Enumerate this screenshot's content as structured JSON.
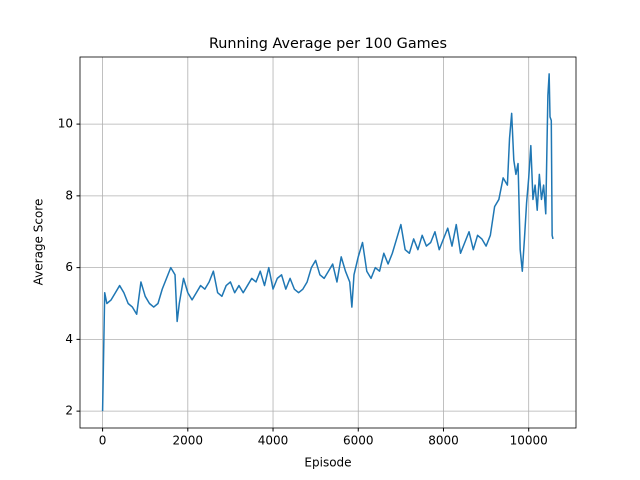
{
  "chart_data": {
    "type": "line",
    "title": "Running Average per 100 Games",
    "xlabel": "Episode",
    "ylabel": "Average Score",
    "color": "#1f77b4",
    "grid": true,
    "xlim": [
      -530,
      11110
    ],
    "ylim": [
      1.53,
      11.87
    ],
    "xticks": [
      0,
      2000,
      4000,
      6000,
      8000,
      10000
    ],
    "yticks": [
      2,
      4,
      6,
      8,
      10
    ],
    "x": [
      0,
      50,
      100,
      200,
      300,
      400,
      500,
      600,
      700,
      800,
      900,
      1000,
      1100,
      1200,
      1300,
      1400,
      1500,
      1600,
      1700,
      1750,
      1800,
      1900,
      2000,
      2100,
      2200,
      2300,
      2400,
      2500,
      2600,
      2700,
      2800,
      2900,
      3000,
      3100,
      3200,
      3300,
      3400,
      3500,
      3600,
      3700,
      3800,
      3900,
      4000,
      4100,
      4200,
      4300,
      4400,
      4500,
      4600,
      4700,
      4800,
      4900,
      5000,
      5100,
      5200,
      5300,
      5400,
      5500,
      5600,
      5700,
      5800,
      5850,
      5900,
      6000,
      6100,
      6200,
      6300,
      6400,
      6500,
      6600,
      6700,
      6800,
      6900,
      7000,
      7100,
      7200,
      7300,
      7400,
      7500,
      7600,
      7700,
      7800,
      7900,
      8000,
      8100,
      8200,
      8300,
      8400,
      8500,
      8600,
      8700,
      8800,
      8900,
      9000,
      9100,
      9200,
      9300,
      9400,
      9500,
      9550,
      9600,
      9650,
      9700,
      9750,
      9800,
      9850,
      9900,
      9950,
      10000,
      10050,
      10100,
      10150,
      10200,
      10250,
      10300,
      10350,
      10400,
      10450,
      10480,
      10500,
      10530,
      10550,
      10570
    ],
    "values": [
      2.0,
      5.3,
      5.0,
      5.1,
      5.3,
      5.5,
      5.3,
      5.0,
      4.9,
      4.7,
      5.6,
      5.2,
      5.0,
      4.9,
      5.0,
      5.4,
      5.7,
      6.0,
      5.8,
      4.5,
      5.0,
      5.7,
      5.3,
      5.1,
      5.3,
      5.5,
      5.4,
      5.6,
      5.9,
      5.3,
      5.2,
      5.5,
      5.6,
      5.3,
      5.5,
      5.3,
      5.5,
      5.7,
      5.6,
      5.9,
      5.5,
      6.0,
      5.4,
      5.7,
      5.8,
      5.4,
      5.7,
      5.4,
      5.3,
      5.4,
      5.6,
      6.0,
      6.2,
      5.8,
      5.7,
      5.9,
      6.1,
      5.6,
      6.3,
      5.9,
      5.6,
      4.9,
      5.8,
      6.3,
      6.7,
      5.9,
      5.7,
      6.0,
      5.9,
      6.4,
      6.1,
      6.4,
      6.8,
      7.2,
      6.5,
      6.4,
      6.8,
      6.5,
      6.9,
      6.6,
      6.7,
      7.0,
      6.5,
      6.8,
      7.1,
      6.6,
      7.2,
      6.4,
      6.7,
      7.0,
      6.5,
      6.9,
      6.8,
      6.6,
      6.9,
      7.7,
      7.9,
      8.5,
      8.3,
      9.6,
      10.3,
      9.0,
      8.6,
      8.9,
      6.5,
      5.9,
      6.8,
      7.8,
      8.5,
      9.4,
      7.9,
      8.3,
      7.6,
      8.6,
      7.9,
      8.3,
      7.5,
      10.8,
      11.4,
      10.2,
      10.1,
      6.9,
      6.8
    ]
  }
}
